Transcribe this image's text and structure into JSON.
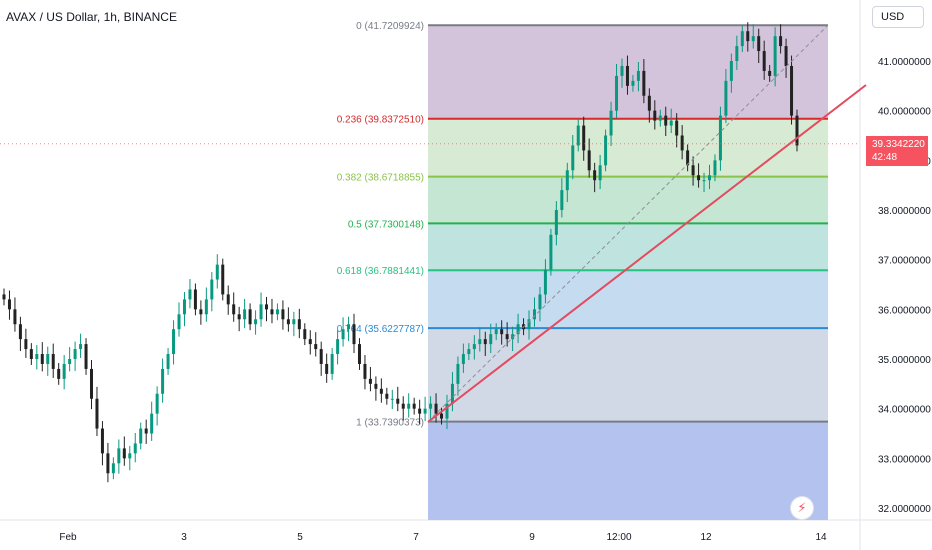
{
  "header": {
    "title": "AVAX / US Dollar, 1h, BINANCE"
  },
  "price_axis": {
    "unit": "USD",
    "last_price": "39.3342220",
    "countdown": "42:48"
  },
  "icons": {
    "flash": "lightning-icon"
  },
  "colors": {
    "up": "#089981",
    "down": "#222222",
    "trendline": "#e34b5f",
    "fib_0_236": "#d62b2b",
    "fib_0_382": "#8bc34a",
    "fib_0_5": "#22b14c",
    "fib_0_618": "#26c281",
    "fib_0_764": "#2a8bd6",
    "fib_edge": "#787b86"
  },
  "chart_data": {
    "type": "candlestick",
    "title": "AVAX / US Dollar, 1h, BINANCE",
    "ylim": [
      31.6,
      42.2
    ],
    "y_ticks": [
      "32.0000000",
      "33.0000000",
      "34.0000000",
      "35.0000000",
      "36.0000000",
      "37.0000000",
      "38.0000000",
      "39.0000000",
      "40.0000000",
      "41.0000000"
    ],
    "x_ticks": [
      "Feb",
      "3",
      "5",
      "7",
      "9",
      "12:00",
      "12",
      "14"
    ],
    "fibonacci": [
      {
        "label": "0 (41.7209924)",
        "level": 0,
        "price": 41.7209924
      },
      {
        "label": "0.236 (39.8372510)",
        "level": 0.236,
        "price": 39.837251
      },
      {
        "label": "0.382 (38.6718855)",
        "level": 0.382,
        "price": 38.6718855
      },
      {
        "label": "0.5 (37.7300148)",
        "level": 0.5,
        "price": 37.7300148
      },
      {
        "label": "0.618 (36.7881441)",
        "level": 0.618,
        "price": 36.7881441
      },
      {
        "label": "0.764 (35.6227787)",
        "level": 0.764,
        "price": 35.6227787
      },
      {
        "label": "1 (33.7390373)",
        "level": 1,
        "price": 33.7390373
      }
    ],
    "series_close": [
      36.2,
      36.0,
      35.7,
      35.4,
      35.2,
      35.0,
      35.1,
      34.9,
      35.1,
      34.8,
      34.6,
      34.9,
      35.0,
      35.2,
      35.3,
      34.8,
      34.2,
      33.6,
      33.1,
      32.7,
      32.9,
      33.2,
      33.0,
      33.1,
      33.3,
      33.6,
      33.5,
      33.9,
      34.3,
      34.8,
      35.1,
      35.6,
      35.9,
      36.2,
      36.4,
      36.0,
      35.9,
      36.2,
      36.6,
      36.9,
      36.3,
      36.1,
      35.9,
      35.8,
      36.0,
      35.7,
      35.8,
      36.1,
      36.0,
      35.9,
      36.0,
      35.8,
      35.7,
      35.8,
      35.6,
      35.4,
      35.3,
      35.2,
      34.9,
      34.7,
      35.1,
      35.4,
      35.6,
      35.7,
      35.3,
      34.9,
      34.6,
      34.5,
      34.4,
      34.3,
      34.2,
      34.2,
      34.1,
      34.0,
      34.1,
      34.0,
      33.9,
      34.0,
      34.1,
      33.9,
      33.8,
      34.1,
      34.5,
      34.9,
      35.1,
      35.2,
      35.3,
      35.4,
      35.3,
      35.5,
      35.6,
      35.5,
      35.4,
      35.5,
      35.7,
      35.6,
      35.8,
      36.0,
      36.3,
      36.8,
      37.5,
      38.0,
      38.4,
      38.8,
      39.3,
      39.7,
      39.2,
      38.8,
      38.6,
      38.9,
      39.5,
      40.0,
      40.7,
      40.9,
      40.5,
      40.6,
      40.8,
      40.3,
      40.0,
      39.8,
      39.9,
      39.7,
      39.8,
      39.5,
      39.2,
      38.9,
      38.7,
      38.6,
      38.6,
      38.7,
      39.0,
      39.9,
      40.6,
      41.0,
      41.3,
      41.6,
      41.4,
      41.5,
      41.2,
      40.8,
      40.7,
      41.5,
      41.3,
      40.9,
      39.9,
      39.3
    ]
  }
}
